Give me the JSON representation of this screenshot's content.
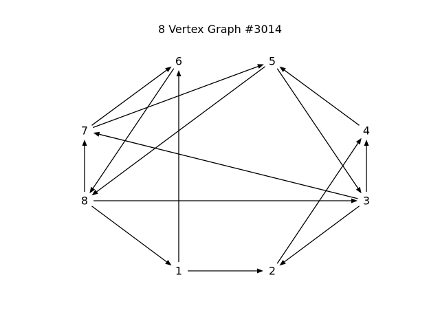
{
  "title": "8 Vertex Graph #3014",
  "colors": {
    "edge": "#000000",
    "label": "#000000",
    "background": "#ffffff"
  },
  "nodes": [
    {
      "id": "1",
      "label": "1"
    },
    {
      "id": "2",
      "label": "2"
    },
    {
      "id": "3",
      "label": "3"
    },
    {
      "id": "4",
      "label": "4"
    },
    {
      "id": "5",
      "label": "5"
    },
    {
      "id": "6",
      "label": "6"
    },
    {
      "id": "7",
      "label": "7"
    },
    {
      "id": "8",
      "label": "8"
    }
  ],
  "edges": [
    {
      "from": "1",
      "to": "2"
    },
    {
      "from": "1",
      "to": "6"
    },
    {
      "from": "2",
      "to": "4"
    },
    {
      "from": "3",
      "to": "2"
    },
    {
      "from": "3",
      "to": "4"
    },
    {
      "from": "3",
      "to": "7"
    },
    {
      "from": "4",
      "to": "5"
    },
    {
      "from": "5",
      "to": "3"
    },
    {
      "from": "5",
      "to": "8"
    },
    {
      "from": "6",
      "to": "8"
    },
    {
      "from": "7",
      "to": "5"
    },
    {
      "from": "7",
      "to": "6"
    },
    {
      "from": "8",
      "to": "1"
    },
    {
      "from": "8",
      "to": "3"
    },
    {
      "from": "8",
      "to": "7"
    }
  ]
}
